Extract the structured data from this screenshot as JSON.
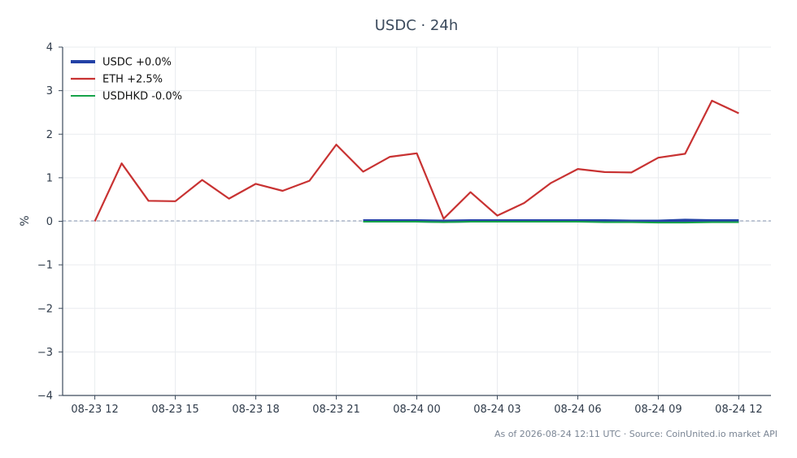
{
  "chart_data": {
    "type": "line",
    "title": "USDC · 24h",
    "xlabel": "",
    "ylabel": "%",
    "ylim": [
      -4,
      4
    ],
    "yticks": [
      "4",
      "3",
      "2",
      "1",
      "0",
      "−1",
      "−2",
      "−3",
      "−4"
    ],
    "ytick_values": [
      4,
      3,
      2,
      1,
      0,
      -1,
      -2,
      -3,
      -4
    ],
    "xticks": [
      "08-23 12",
      "08-23 15",
      "08-23 18",
      "08-23 21",
      "08-24 00",
      "08-24 03",
      "08-24 06",
      "08-24 09",
      "08-24 12"
    ],
    "xtick_hours": [
      0,
      3,
      6,
      9,
      12,
      15,
      18,
      21,
      24
    ],
    "x_hours_range": [
      -1.2,
      25.2
    ],
    "grid": true,
    "legend_position": "top-left",
    "reference_line": 0,
    "series": [
      {
        "name": "USDC +0.0%",
        "color": "#2341a6",
        "x_hours": [
          10,
          11,
          12,
          13,
          14,
          15,
          16,
          17,
          18,
          19,
          20,
          21,
          22,
          23,
          24
        ],
        "values": [
          0.01,
          0.01,
          0.01,
          0.0,
          0.01,
          0.01,
          0.01,
          0.01,
          0.01,
          0.01,
          0.0,
          0.0,
          0.02,
          0.01,
          0.01
        ]
      },
      {
        "name": "ETH +2.5%",
        "color": "#c83232",
        "x_hours": [
          0,
          1,
          2,
          3,
          4,
          5,
          6,
          7,
          8,
          9,
          10,
          11,
          12,
          13,
          14,
          15,
          16,
          17,
          18,
          19,
          20,
          21,
          22,
          23,
          24
        ],
        "values": [
          0.0,
          1.33,
          0.47,
          0.46,
          0.95,
          0.52,
          0.86,
          0.7,
          0.93,
          1.76,
          1.14,
          1.48,
          1.56,
          0.06,
          0.67,
          0.13,
          0.42,
          0.88,
          1.2,
          1.13,
          1.12,
          1.46,
          1.55,
          2.77,
          2.48
        ]
      },
      {
        "name": "USDHKD -0.0%",
        "color": "#16a34a",
        "x_hours": [
          10,
          11,
          12,
          13,
          14,
          15,
          16,
          17,
          18,
          19,
          20,
          21,
          22,
          23,
          24
        ],
        "values": [
          -0.01,
          -0.01,
          -0.01,
          -0.02,
          -0.01,
          -0.01,
          -0.01,
          -0.01,
          -0.01,
          -0.02,
          -0.02,
          -0.03,
          -0.03,
          -0.02,
          -0.02
        ]
      }
    ]
  },
  "footer": "As of 2026-08-24 12:11 UTC · Source: CoinUnited.io market API"
}
